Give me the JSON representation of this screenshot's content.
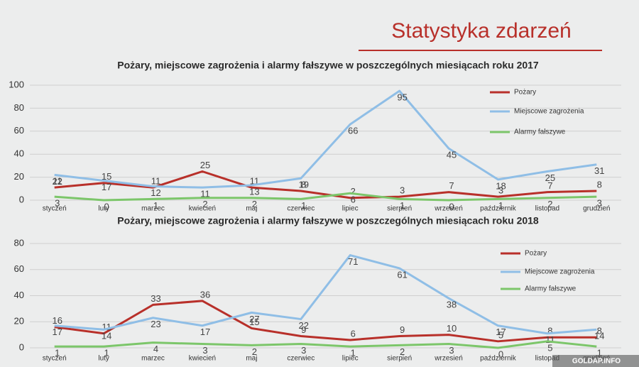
{
  "title": "Statystyka zdarzeń",
  "watermark": "GOLDAP.INFO",
  "chart_data": [
    {
      "type": "line",
      "title": "Pożary, miejscowe zagrożenia i alarmy fałszywe w poszczególnych miesiącach  roku 2017",
      "categories": [
        "styczeń",
        "luty",
        "marzec",
        "kwiecień",
        "maj",
        "czerwiec",
        "lipiec",
        "sierpień",
        "wrzesień",
        "październik",
        "listopad",
        "grudzień"
      ],
      "series": [
        {
          "name": "Pożary",
          "color": "#b8302a",
          "values": [
            11,
            15,
            11,
            25,
            11,
            8,
            2,
            3,
            7,
            3,
            7,
            8
          ]
        },
        {
          "name": "Miejscowe zagrożenia",
          "color": "#8fbee6",
          "values": [
            22,
            17,
            12,
            11,
            13,
            19,
            66,
            95,
            45,
            18,
            25,
            31
          ]
        },
        {
          "name": "Alarmy fałszywe",
          "color": "#7cc66a",
          "values": [
            3,
            0,
            1,
            2,
            2,
            1,
            6,
            1,
            0,
            1,
            2,
            3
          ]
        }
      ],
      "ylim": [
        0,
        100
      ],
      "yticks": [
        0,
        20,
        40,
        60,
        80,
        100
      ],
      "grid": true
    },
    {
      "type": "line",
      "title": "Pożary, miejscowe zagrożenia i alarmy fałszywe w poszczególnych miesiącach  roku 2018",
      "categories": [
        "styczeń",
        "luty",
        "marzec",
        "kwiecień",
        "maj",
        "czerwiec",
        "lipiec",
        "sierpień",
        "wrzesień",
        "październik",
        "listopad",
        "grudzień"
      ],
      "series": [
        {
          "name": "Pożary",
          "color": "#b8302a",
          "values": [
            16,
            11,
            33,
            36,
            15,
            9,
            6,
            9,
            10,
            5,
            8,
            8
          ]
        },
        {
          "name": "Miejscowe zagrożenia",
          "color": "#8fbee6",
          "values": [
            17,
            14,
            23,
            17,
            27,
            22,
            71,
            61,
            38,
            17,
            11,
            14
          ]
        },
        {
          "name": "Alarmy fałszywe",
          "color": "#7cc66a",
          "values": [
            1,
            1,
            4,
            3,
            2,
            3,
            1,
            2,
            3,
            0,
            5,
            1
          ]
        }
      ],
      "ylim": [
        0,
        80
      ],
      "yticks": [
        0,
        20,
        40,
        60,
        80
      ],
      "grid": true
    }
  ]
}
